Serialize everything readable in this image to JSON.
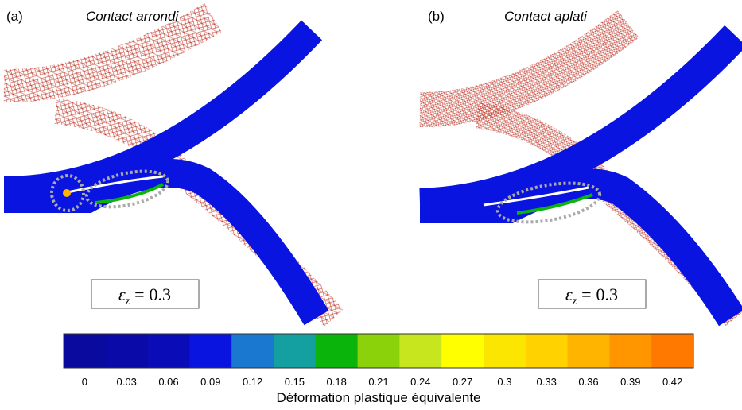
{
  "panels": [
    {
      "label": "(a)",
      "title": "Contact arrondi",
      "strain": {
        "symbol": "ε",
        "subscript": "z",
        "relation": "=",
        "value": 0.3
      }
    },
    {
      "label": "(b)",
      "title": "Contact aplati",
      "strain": {
        "symbol": "ε",
        "subscript": "z",
        "relation": "=",
        "value": 0.3
      }
    }
  ],
  "colorbar": {
    "ticks": [
      0,
      0.03,
      0.06,
      0.09,
      0.12,
      0.15,
      0.18,
      0.21,
      0.24,
      0.27,
      0.3,
      0.33,
      0.36,
      0.39,
      0.42
    ],
    "colors": [
      "#0a0a9e",
      "#0a0aa8",
      "#0a0cb8",
      "#0a14e0",
      "#1a78d0",
      "#14a0a0",
      "#0ab40a",
      "#8cd20a",
      "#c8e61e",
      "#ffff00",
      "#fae600",
      "#ffd200",
      "#ffb400",
      "#ff9600",
      "#ff7800"
    ],
    "label": "Déformation plastique équivalente"
  }
}
